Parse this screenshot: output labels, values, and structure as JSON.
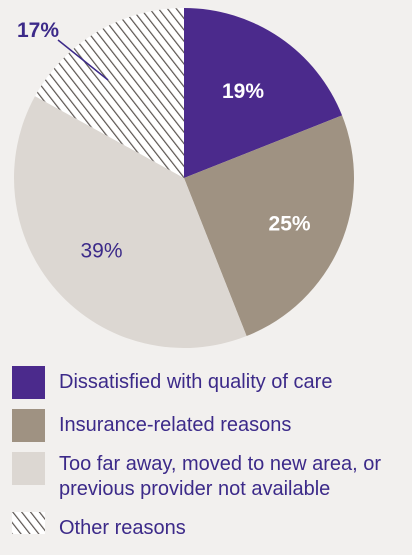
{
  "chart_data": {
    "type": "pie",
    "slices": [
      {
        "label": "Dissatisfied with quality of care",
        "value": 19,
        "value_label": "19%",
        "color": "#4b2a8c",
        "pattern": "solid"
      },
      {
        "label": "Insurance-related reasons",
        "value": 25,
        "value_label": "25%",
        "color": "#9f9282",
        "pattern": "solid"
      },
      {
        "label": "Too far away, moved to new area, or previous provider not available",
        "value": 39,
        "value_label": "39%",
        "color": "#dcd7d2",
        "pattern": "solid"
      },
      {
        "label": "Other reasons",
        "value": 17,
        "value_label": "17%",
        "color": "#5a5450",
        "pattern": "hatched"
      }
    ],
    "legend_position": "bottom",
    "start_angle_degrees": 0,
    "direction": "clockwise"
  },
  "colors": {
    "label_text": "#3c2a89",
    "inner_label_light": "#ffffff"
  }
}
